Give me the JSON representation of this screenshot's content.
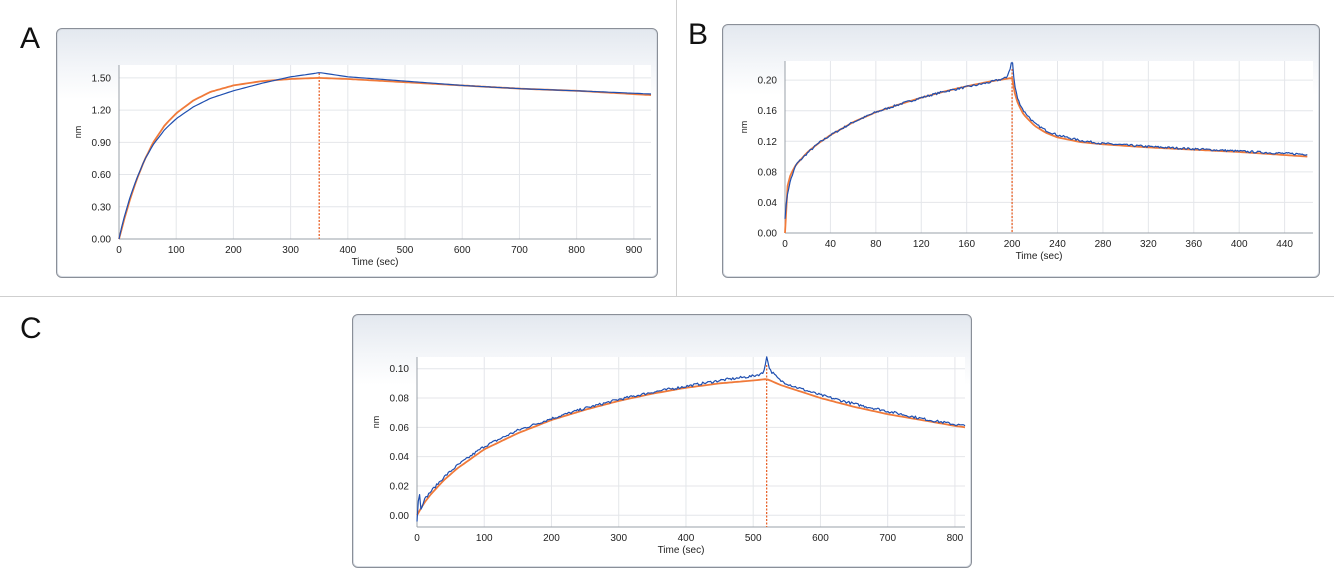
{
  "panels": [
    {
      "label": "A"
    },
    {
      "label": "B"
    },
    {
      "label": "C"
    }
  ],
  "chart_data": [
    {
      "panel": "A",
      "type": "line",
      "xlabel": "Time (sec)",
      "ylabel": "nm",
      "xlim": [
        0,
        930
      ],
      "ylim": [
        0,
        1.62
      ],
      "xticks": [
        0,
        100,
        200,
        300,
        400,
        500,
        600,
        700,
        800,
        900
      ],
      "xtick_labels": [
        "0",
        "100",
        "200",
        "300",
        "400",
        "500",
        "600",
        "700",
        "800",
        "900"
      ],
      "yticks": [
        0,
        0.3,
        0.6,
        0.9,
        1.2,
        1.5
      ],
      "ytick_labels": [
        "0.00",
        "0.30",
        "0.60",
        "0.90",
        "1.20",
        "1.50"
      ],
      "grid": true,
      "colors": {
        "measured": "#1f4fb0",
        "fit": "#f07a3a",
        "marker": "#e8632a"
      },
      "marker_x": 350,
      "series": [
        {
          "role": "measured",
          "x": [
            0,
            5,
            10,
            20,
            30,
            45,
            60,
            80,
            100,
            130,
            160,
            200,
            250,
            300,
            340,
            350,
            400,
            500,
            600,
            700,
            800,
            930
          ],
          "y": [
            0.0,
            0.12,
            0.22,
            0.4,
            0.55,
            0.74,
            0.88,
            1.02,
            1.12,
            1.23,
            1.31,
            1.38,
            1.45,
            1.51,
            1.54,
            1.55,
            1.51,
            1.47,
            1.43,
            1.4,
            1.38,
            1.35
          ]
        },
        {
          "role": "fit",
          "x": [
            0,
            5,
            10,
            20,
            30,
            45,
            60,
            80,
            100,
            130,
            160,
            200,
            250,
            300,
            350,
            400,
            500,
            600,
            700,
            800,
            930
          ],
          "y": [
            0.0,
            0.1,
            0.2,
            0.38,
            0.54,
            0.74,
            0.9,
            1.06,
            1.17,
            1.29,
            1.37,
            1.43,
            1.47,
            1.49,
            1.5,
            1.49,
            1.46,
            1.43,
            1.4,
            1.38,
            1.34
          ]
        }
      ]
    },
    {
      "panel": "B",
      "type": "line",
      "xlabel": "Time (sec)",
      "ylabel": "nm",
      "xlim": [
        0,
        465
      ],
      "ylim": [
        0,
        0.225
      ],
      "xticks": [
        0,
        40,
        80,
        120,
        160,
        200,
        240,
        280,
        320,
        360,
        400,
        440
      ],
      "xtick_labels": [
        "0",
        "40",
        "80",
        "120",
        "160",
        "200",
        "240",
        "280",
        "320",
        "360",
        "400",
        "440"
      ],
      "yticks": [
        0,
        0.04,
        0.08,
        0.12,
        0.16,
        0.2
      ],
      "ytick_labels": [
        "0.00",
        "0.04",
        "0.08",
        "0.12",
        "0.16",
        "0.20"
      ],
      "grid": true,
      "colors": {
        "measured": "#1f4fb0",
        "fit": "#f07a3a",
        "marker": "#e8632a"
      },
      "marker_x": 200,
      "series": [
        {
          "role": "measured",
          "x": [
            0,
            2,
            5,
            10,
            20,
            30,
            40,
            60,
            80,
            100,
            120,
            140,
            160,
            180,
            195,
            199,
            200,
            202,
            205,
            210,
            220,
            230,
            240,
            260,
            280,
            300,
            320,
            360,
            400,
            440,
            460
          ],
          "y": [
            0.02,
            0.05,
            0.07,
            0.09,
            0.105,
            0.118,
            0.128,
            0.145,
            0.158,
            0.168,
            0.177,
            0.185,
            0.191,
            0.197,
            0.203,
            0.218,
            0.23,
            0.195,
            0.175,
            0.16,
            0.143,
            0.134,
            0.128,
            0.121,
            0.117,
            0.115,
            0.113,
            0.11,
            0.107,
            0.104,
            0.103
          ]
        },
        {
          "role": "fit",
          "x": [
            0,
            2,
            5,
            10,
            20,
            30,
            40,
            60,
            80,
            100,
            120,
            140,
            160,
            180,
            200,
            202,
            205,
            210,
            220,
            230,
            240,
            260,
            280,
            300,
            320,
            360,
            400,
            440,
            460
          ],
          "y": [
            0.0,
            0.06,
            0.077,
            0.09,
            0.106,
            0.118,
            0.128,
            0.145,
            0.158,
            0.168,
            0.177,
            0.185,
            0.192,
            0.198,
            0.203,
            0.185,
            0.17,
            0.155,
            0.14,
            0.131,
            0.125,
            0.119,
            0.116,
            0.114,
            0.112,
            0.109,
            0.106,
            0.102,
            0.1
          ]
        }
      ]
    },
    {
      "panel": "C",
      "type": "line",
      "xlabel": "Time (sec)",
      "ylabel": "nm",
      "xlim": [
        0,
        815
      ],
      "ylim": [
        -0.008,
        0.108
      ],
      "xticks": [
        0,
        100,
        200,
        300,
        400,
        500,
        600,
        700,
        800
      ],
      "xtick_labels": [
        "0",
        "100",
        "200",
        "300",
        "400",
        "500",
        "600",
        "700",
        "800"
      ],
      "yticks": [
        0,
        0.02,
        0.04,
        0.06,
        0.08,
        0.1
      ],
      "ytick_labels": [
        "0.00",
        "0.02",
        "0.04",
        "0.06",
        "0.08",
        "0.10"
      ],
      "grid": true,
      "colors": {
        "measured": "#1f4fb0",
        "fit": "#f07a3a",
        "marker": "#e8632a"
      },
      "marker_x": 520,
      "series": [
        {
          "role": "measured",
          "x": [
            0,
            3,
            6,
            10,
            20,
            40,
            60,
            100,
            150,
            200,
            250,
            300,
            350,
            400,
            450,
            500,
            515,
            520,
            525,
            540,
            560,
            600,
            650,
            700,
            750,
            800,
            815
          ],
          "y": [
            -0.004,
            0.018,
            0.004,
            0.01,
            0.016,
            0.026,
            0.034,
            0.047,
            0.058,
            0.066,
            0.073,
            0.079,
            0.084,
            0.088,
            0.092,
            0.095,
            0.097,
            0.108,
            0.099,
            0.092,
            0.088,
            0.082,
            0.076,
            0.071,
            0.066,
            0.062,
            0.061
          ]
        },
        {
          "role": "fit",
          "x": [
            0,
            10,
            20,
            40,
            60,
            100,
            150,
            200,
            250,
            300,
            350,
            400,
            450,
            500,
            520,
            540,
            560,
            600,
            650,
            700,
            750,
            800,
            815
          ],
          "y": [
            0.0,
            0.008,
            0.014,
            0.024,
            0.032,
            0.045,
            0.056,
            0.065,
            0.072,
            0.078,
            0.083,
            0.087,
            0.09,
            0.092,
            0.093,
            0.089,
            0.086,
            0.08,
            0.074,
            0.069,
            0.065,
            0.061,
            0.06
          ]
        }
      ]
    }
  ]
}
